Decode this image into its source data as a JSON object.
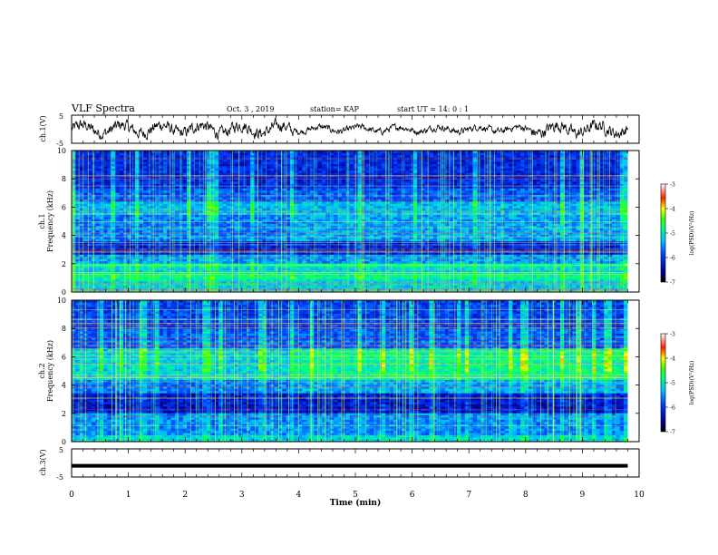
{
  "header": {
    "title": "VLF Spectra",
    "date": "Oct. 3  , 2019",
    "station": "station= KAP",
    "start": "start  UT =   14: 0   : 1"
  },
  "chart_data": [
    {
      "id": "ch1-waveform",
      "type": "line",
      "ylabel": "ch.1(V)",
      "ylim": [
        -5,
        5
      ],
      "yticks": [
        "5",
        "-5"
      ],
      "xlim": [
        0,
        10
      ],
      "duration_min": 9.8,
      "description_level": "noisy waveform oscillating around 0 V, amplitude about ±3 V"
    },
    {
      "id": "ch1-spectrogram",
      "type": "heatmap",
      "ylabel": "ch.1\nFrequency (kHz)",
      "ylim": [
        0,
        10
      ],
      "yticks": [
        "0",
        "2",
        "4",
        "6",
        "8",
        "10"
      ],
      "xlim": [
        0,
        10
      ],
      "duration_min": 9.8
    },
    {
      "id": "ch2-spectrogram",
      "type": "heatmap",
      "ylabel": "ch.2\nFrequency (kHz)",
      "ylim": [
        0,
        10
      ],
      "yticks": [
        "0",
        "2",
        "4",
        "6",
        "8",
        "10"
      ],
      "xlim": [
        0,
        10
      ],
      "duration_min": 9.8
    },
    {
      "id": "ch3-waveform",
      "type": "line",
      "ylabel": "ch.3(V)",
      "ylim": [
        -5,
        5
      ],
      "yticks": [
        "5",
        "-5"
      ],
      "xlim": [
        0,
        10
      ],
      "constant_value": -1,
      "duration_min": 9.8
    }
  ],
  "xaxis": {
    "label": "Time  (min)",
    "ticks": [
      "0",
      "1",
      "2",
      "3",
      "4",
      "5",
      "6",
      "7",
      "8",
      "9",
      "10"
    ]
  },
  "colorbar": {
    "label": "log(PSD)(V²/Hz)",
    "ticks": [
      "-3",
      "-4",
      "-5",
      "-6",
      "-7"
    ],
    "range": [
      -7,
      -3
    ]
  }
}
